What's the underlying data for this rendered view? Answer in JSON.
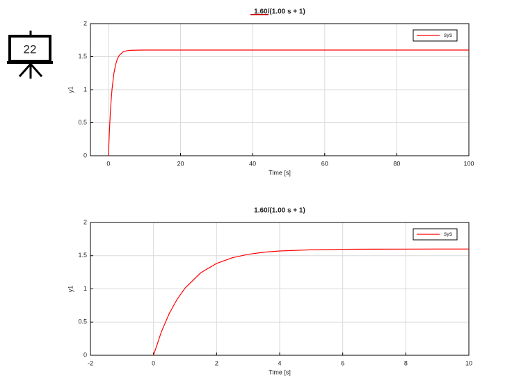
{
  "slide_number": "22",
  "chart_data": [
    {
      "type": "line",
      "title": "1.60/(1.00 s + 1)",
      "x_label": "Time [s]",
      "y_label": "y1",
      "xlim": [
        -5,
        100
      ],
      "xticks": [
        0,
        20,
        40,
        60,
        80,
        100
      ],
      "ylim": [
        0,
        2
      ],
      "yticks": [
        0,
        0.5,
        1,
        1.5,
        2
      ],
      "grid": true,
      "legend": "upper-right",
      "x": [
        0,
        0.25,
        0.5,
        0.75,
        1,
        1.5,
        2,
        2.5,
        3,
        4,
        5,
        6,
        8,
        10,
        20,
        40,
        60,
        80,
        100
      ],
      "series": [
        {
          "name": "sys",
          "color": "#ff0000",
          "values": [
            0,
            0.354,
            0.63,
            0.844,
            1.011,
            1.243,
            1.383,
            1.469,
            1.52,
            1.571,
            1.589,
            1.596,
            1.599,
            1.6,
            1.6,
            1.6,
            1.6,
            1.6,
            1.6
          ]
        }
      ]
    },
    {
      "type": "line",
      "title": "1.60/(1.00 s + 1)",
      "x_label": "Time [s]",
      "y_label": "y1",
      "xlim": [
        -2,
        10
      ],
      "xticks": [
        -2,
        0,
        2,
        4,
        6,
        8,
        10
      ],
      "ylim": [
        0,
        2
      ],
      "yticks": [
        0,
        0.5,
        1,
        1.5,
        2
      ],
      "grid": true,
      "legend": "upper-right",
      "x": [
        0,
        0.25,
        0.5,
        0.75,
        1,
        1.5,
        2,
        2.5,
        3,
        3.5,
        4,
        5,
        6,
        7,
        8,
        9,
        10
      ],
      "series": [
        {
          "name": "sys",
          "color": "#ff0000",
          "values": [
            0,
            0.354,
            0.63,
            0.844,
            1.011,
            1.243,
            1.383,
            1.469,
            1.52,
            1.552,
            1.571,
            1.589,
            1.596,
            1.598,
            1.599,
            1.6,
            1.6
          ]
        }
      ]
    }
  ]
}
